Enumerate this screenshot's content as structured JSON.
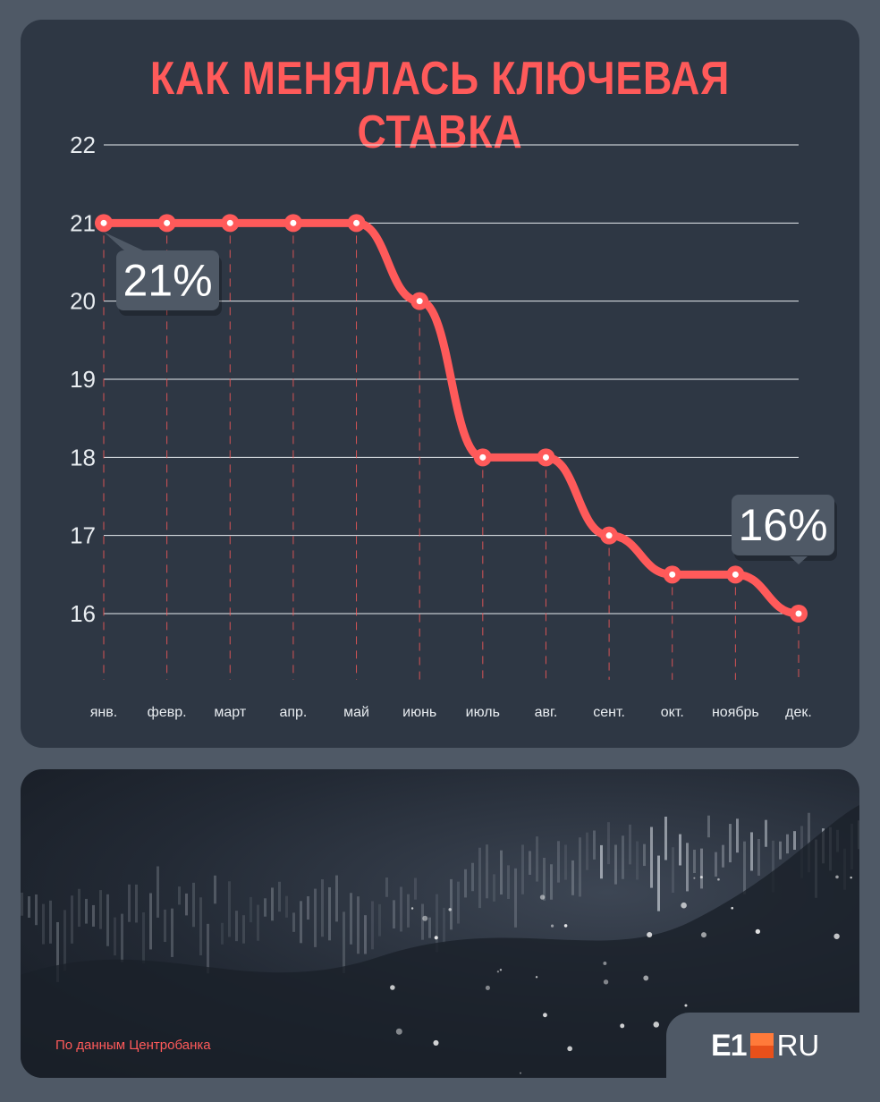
{
  "title": "КАК МЕНЯЛАСЬ КЛЮЧЕВАЯ СТАВКА",
  "chart_data": {
    "type": "line",
    "title": "КАК МЕНЯЛАСЬ КЛЮЧЕВАЯ СТАВКА",
    "categories": [
      "янв.",
      "февр.",
      "март",
      "апр.",
      "май",
      "июнь",
      "июль",
      "авг.",
      "сент.",
      "окт.",
      "ноябрь",
      "дек."
    ],
    "values": [
      21,
      21,
      21,
      21,
      21,
      20,
      18,
      18,
      17,
      16.5,
      16.5,
      16
    ],
    "ylim": [
      16,
      22
    ],
    "yticks": [
      "16",
      "17",
      "18",
      "19",
      "20",
      "21",
      "22"
    ],
    "grid": true,
    "annotations": [
      {
        "category": "янв.",
        "text": "21%"
      },
      {
        "category": "дек.",
        "text": "16%"
      }
    ],
    "line_color": "#ff5a5a"
  },
  "source": "По данным Центробанка",
  "logo": {
    "text": "E1",
    "suffix": "RU"
  },
  "colors": {
    "background": "#4f5966",
    "panel": "#2e3744",
    "accent": "#ff5a5a"
  }
}
